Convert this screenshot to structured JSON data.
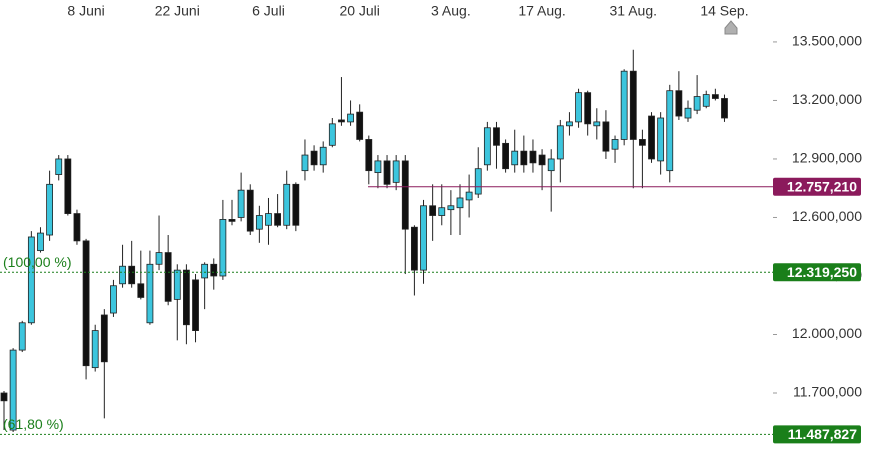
{
  "chart_data": {
    "type": "candlestick",
    "categories": [
      null,
      null,
      null,
      null,
      null,
      null,
      null,
      null,
      null,
      "8 Juni",
      null,
      null,
      null,
      null,
      null,
      null,
      null,
      null,
      null,
      "22 Juni",
      null,
      null,
      null,
      null,
      null,
      null,
      null,
      null,
      null,
      "6 Juli",
      null,
      null,
      null,
      null,
      null,
      null,
      null,
      null,
      null,
      "20 Juli",
      null,
      null,
      null,
      null,
      null,
      null,
      null,
      null,
      null,
      "3 Aug.",
      null,
      null,
      null,
      null,
      null,
      null,
      null,
      null,
      null,
      "17 Aug.",
      null,
      null,
      null,
      null,
      null,
      null,
      null,
      null,
      null,
      "31 Aug.",
      null,
      null,
      null,
      null,
      null,
      null,
      null,
      null,
      null,
      "14 Sep."
    ],
    "open": [
      11700000,
      11510000,
      11920000,
      12060000,
      12430000,
      12510000,
      12820000,
      12900000,
      12620000,
      12480000,
      11830000,
      12100000,
      12110000,
      12260000,
      12350000,
      12260000,
      12060000,
      12360000,
      12420000,
      12180000,
      12330000,
      12280000,
      12290000,
      12360000,
      12300000,
      12590000,
      12600000,
      12740000,
      12540000,
      12560000,
      12620000,
      12560000,
      12770000,
      12840000,
      12940000,
      12870000,
      12970000,
      13100000,
      13090000,
      13140000,
      13000000,
      12830000,
      12890000,
      12780000,
      12890000,
      12550000,
      12330000,
      12660000,
      12610000,
      12640000,
      12650000,
      12690000,
      12720000,
      12870000,
      13060000,
      12980000,
      12870000,
      12940000,
      12940000,
      12920000,
      12840000,
      12900000,
      13070000,
      13090000,
      13240000,
      13070000,
      13090000,
      12950000,
      13000000,
      13350000,
      13000000,
      13120000,
      12890000,
      12840000,
      13250000,
      13110000,
      13150000,
      13170000,
      13230000,
      13210000
    ],
    "high": [
      11710000,
      11930000,
      12070000,
      12530000,
      12550000,
      12840000,
      12920000,
      12920000,
      12640000,
      12490000,
      12050000,
      12130000,
      12280000,
      12460000,
      12480000,
      12430000,
      12430000,
      12610000,
      12510000,
      12360000,
      12360000,
      12310000,
      12370000,
      12390000,
      12690000,
      12690000,
      12830000,
      12770000,
      12660000,
      12700000,
      12720000,
      12840000,
      12780000,
      13000000,
      12970000,
      12990000,
      13110000,
      13320000,
      13200000,
      13180000,
      13020000,
      12920000,
      12920000,
      12920000,
      12920000,
      12560000,
      12690000,
      12770000,
      12770000,
      12740000,
      12770000,
      12820000,
      12960000,
      13090000,
      13090000,
      13000000,
      13050000,
      13020000,
      13000000,
      12950000,
      12950000,
      13100000,
      13140000,
      13260000,
      13250000,
      13160000,
      13150000,
      13020000,
      13360000,
      13460000,
      13050000,
      13140000,
      13140000,
      13280000,
      13350000,
      13200000,
      13330000,
      13250000,
      13260000,
      13230000
    ],
    "low": [
      11510000,
      11500000,
      11910000,
      12050000,
      12420000,
      12480000,
      12790000,
      12610000,
      12460000,
      11770000,
      11810000,
      11570000,
      12090000,
      12240000,
      12240000,
      12180000,
      12050000,
      12330000,
      12150000,
      11970000,
      11950000,
      11960000,
      12130000,
      12230000,
      12280000,
      12560000,
      12580000,
      12510000,
      12470000,
      12460000,
      12550000,
      12540000,
      12530000,
      12790000,
      12840000,
      12830000,
      12960000,
      13070000,
      13070000,
      12990000,
      12770000,
      12750000,
      12750000,
      12740000,
      12310000,
      12200000,
      12260000,
      12480000,
      12560000,
      12510000,
      12510000,
      12600000,
      12700000,
      12840000,
      12850000,
      12830000,
      12830000,
      12830000,
      12830000,
      12740000,
      12630000,
      12780000,
      13020000,
      13060000,
      13020000,
      13000000,
      12900000,
      12880000,
      12970000,
      12750000,
      12750000,
      12880000,
      12820000,
      12780000,
      13100000,
      13090000,
      13130000,
      13160000,
      13200000,
      13090000
    ],
    "close": [
      11660000,
      11920000,
      12060000,
      12500000,
      12520000,
      12770000,
      12900000,
      12620000,
      12480000,
      11840000,
      12020000,
      11860000,
      12250000,
      12350000,
      12260000,
      12190000,
      12360000,
      12420000,
      12170000,
      12330000,
      12050000,
      12020000,
      12360000,
      12300000,
      12590000,
      12580000,
      12740000,
      12530000,
      12610000,
      12620000,
      12560000,
      12770000,
      12560000,
      12920000,
      12870000,
      12960000,
      13080000,
      13090000,
      13130000,
      13000000,
      12840000,
      12890000,
      12770000,
      12890000,
      12540000,
      12330000,
      12660000,
      12610000,
      12650000,
      12660000,
      12700000,
      12730000,
      12850000,
      13060000,
      12970000,
      12850000,
      12940000,
      12870000,
      12880000,
      12870000,
      12900000,
      13070000,
      13090000,
      13240000,
      13080000,
      13090000,
      12940000,
      13000000,
      13350000,
      13000000,
      12970000,
      12900000,
      13110000,
      13250000,
      13120000,
      13160000,
      13220000,
      13230000,
      13210000,
      13110000
    ],
    "up_color": "#3cc5dd",
    "down_color": "#111111",
    "ylim": [
      11377000,
      13715000
    ],
    "yticks": [
      {
        "value": 13500000,
        "label": "13.500,000"
      },
      {
        "value": 13200000,
        "label": "13.200,000"
      },
      {
        "value": 12900000,
        "label": "12.900,000"
      },
      {
        "value": 12600000,
        "label": "12.600,000"
      },
      {
        "value": 12300000,
        "label": "12.300,000"
      },
      {
        "value": 12000000,
        "label": "12.000,000"
      },
      {
        "value": 11700000,
        "label": "11.700,000"
      }
    ],
    "hlines": [
      {
        "value": 12757210,
        "label": "12.757,210",
        "color": "#8b1a5c",
        "style": "solid"
      },
      {
        "value": 12319250,
        "label": "12.319,250",
        "color": "#1a7f1a",
        "style": "dotted",
        "annotation": "(100,00 %)"
      },
      {
        "value": 11487827,
        "label": "11.487,827",
        "color": "#1a7f1a",
        "style": "dotted",
        "annotation": "(61,80 %)"
      }
    ]
  }
}
